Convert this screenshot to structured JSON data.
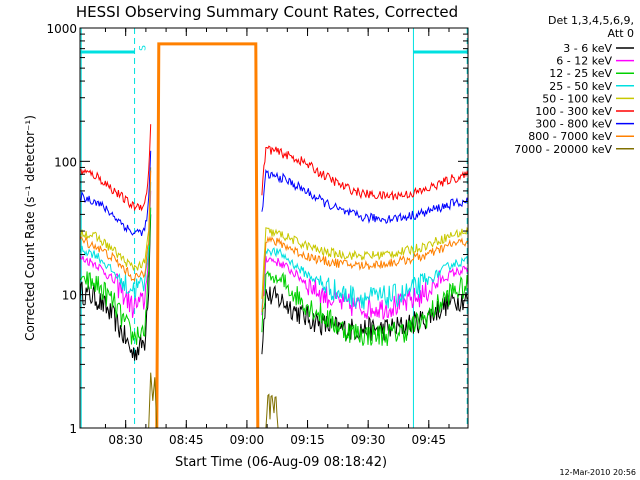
{
  "chart_data": {
    "type": "line",
    "title": "HESSI Observing Summary Count Rates, Corrected",
    "xlabel": "Start Time (06-Aug-09 08:18:42)",
    "ylabel": "Corrected Count Rate (s⁻¹ detector⁻¹)",
    "y_scale": "log",
    "ylim": [
      1,
      1000
    ],
    "xlim_minutes_after_start": [
      0,
      96
    ],
    "yticks": [
      {
        "value": 1,
        "label": "1"
      },
      {
        "value": 10,
        "label": "10"
      },
      {
        "value": 100,
        "label": "100"
      },
      {
        "value": 1000,
        "label": "1000"
      }
    ],
    "xticks": [
      {
        "minute": 11.3,
        "label": "08:30"
      },
      {
        "minute": 26.3,
        "label": "08:45"
      },
      {
        "minute": 41.3,
        "label": "09:00"
      },
      {
        "minute": 56.3,
        "label": "09:15"
      },
      {
        "minute": 71.3,
        "label": "09:30"
      },
      {
        "minute": 86.3,
        "label": "09:45"
      }
    ],
    "legend": {
      "placement": "right",
      "header_line1": "Det 1,3,4,5,6,9,",
      "header_line2": "Att 0"
    },
    "series": [
      {
        "name": "3 - 6 keV",
        "color": "#000000",
        "segments": [
          {
            "x": [
              0,
              4,
              8,
              11,
              13,
              16,
              17,
              17.5
            ],
            "y": [
              10.5,
              9.5,
              7,
              4.8,
              3.6,
              4.5,
              12,
              40
            ]
          },
          {
            "x": [
              45,
              46,
              50,
              55,
              60,
              65,
              70,
              75,
              80,
              85,
              88,
              92,
              96
            ],
            "y": [
              4,
              10,
              9,
              7,
              6,
              5.5,
              5.5,
              5.5,
              5.8,
              6.5,
              7.5,
              9,
              9.5
            ]
          }
        ]
      },
      {
        "name": "6 - 12 keV",
        "color": "#ff00ff",
        "segments": [
          {
            "x": [
              0,
              4,
              8,
              11,
              13,
              16,
              17,
              17.5
            ],
            "y": [
              19,
              17,
              13,
              10,
              8,
              9,
              20,
              60
            ]
          },
          {
            "x": [
              45,
              46,
              50,
              55,
              60,
              65,
              70,
              75,
              80,
              85,
              88,
              92,
              96
            ],
            "y": [
              6,
              19,
              17,
              13,
              10,
              8.5,
              8,
              8,
              8.5,
              10,
              12,
              14.5,
              15.5
            ]
          }
        ]
      },
      {
        "name": "12 - 25 keV",
        "color": "#00d000",
        "segments": [
          {
            "x": [
              0,
              4,
              8,
              11,
              13,
              16,
              17,
              17.5
            ],
            "y": [
              13,
              12,
              9,
              6.2,
              4.8,
              5.5,
              14,
              45
            ]
          },
          {
            "x": [
              45,
              46,
              50,
              55,
              60,
              65,
              70,
              75,
              80,
              85,
              88,
              92,
              96
            ],
            "y": [
              5,
              14,
              12.5,
              9,
              7,
              5.5,
              5,
              5,
              5.3,
              6.5,
              8,
              10.5,
              11.5
            ]
          }
        ]
      },
      {
        "name": "25 - 50 keV",
        "color": "#00e0e0",
        "segments": [
          {
            "x": [
              0,
              4,
              8,
              11,
              13,
              16,
              17,
              17.5
            ],
            "y": [
              22,
              20,
              15,
              12,
              11,
              12,
              24,
              70
            ]
          },
          {
            "x": [
              45,
              46,
              50,
              55,
              60,
              65,
              70,
              75,
              80,
              85,
              88,
              92,
              96
            ],
            "y": [
              7,
              22,
              20,
              15,
              12,
              10,
              9.5,
              9.5,
              10,
              12,
              14,
              17,
              18
            ]
          }
        ]
      },
      {
        "name": "50 - 100 keV",
        "color": "#c8c800",
        "segments": [
          {
            "x": [
              0,
              4,
              8,
              11,
              13,
              16,
              17,
              17.5
            ],
            "y": [
              30,
              27,
              22,
              18,
              16,
              17,
              30,
              90
            ]
          },
          {
            "x": [
              45,
              46,
              50,
              55,
              60,
              65,
              70,
              75,
              80,
              85,
              88,
              92,
              96
            ],
            "y": [
              10,
              30,
              28,
              24,
              21,
              20,
              19.5,
              20,
              21,
              23,
              25,
              28,
              30
            ]
          }
        ]
      },
      {
        "name": "100 - 300 keV",
        "color": "#ff0000",
        "segments": [
          {
            "x": [
              0,
              4,
              8,
              11,
              13,
              16,
              17,
              17.5
            ],
            "y": [
              85,
              78,
              62,
              52,
              46,
              47,
              80,
              190
            ]
          },
          {
            "x": [
              45,
              46,
              50,
              55,
              60,
              65,
              70,
              75,
              80,
              85,
              88,
              92,
              96
            ],
            "y": [
              60,
              125,
              115,
              100,
              80,
              65,
              57,
              55,
              56,
              60,
              66,
              74,
              78
            ]
          }
        ]
      },
      {
        "name": "300 - 800 keV",
        "color": "#0000ff",
        "segments": [
          {
            "x": [
              0,
              4,
              8,
              11,
              13,
              16,
              17,
              17.5
            ],
            "y": [
              55,
              50,
              40,
              33,
              29,
              30,
              50,
              120
            ]
          },
          {
            "x": [
              45,
              46,
              50,
              55,
              60,
              65,
              70,
              75,
              80,
              85,
              88,
              92,
              96
            ],
            "y": [
              40,
              80,
              75,
              62,
              50,
              42,
              38,
              37,
              38,
              41,
              44,
              48,
              50
            ]
          }
        ]
      },
      {
        "name": "800 - 7000 keV",
        "color": "#ff8000",
        "segments": [
          {
            "x": [
              0,
              4,
              8,
              11,
              13,
              16,
              17,
              17.5
            ],
            "y": [
              26,
              23,
              19,
              15.5,
              13.5,
              14,
              26,
              85
            ]
          },
          {
            "x": [
              19,
              19.5,
              43.5,
              44
            ],
            "y": [
              1,
              760,
              760,
              1
            ]
          },
          {
            "x": [
              45,
              46,
              50,
              55,
              60,
              65,
              70,
              75,
              80,
              85,
              88,
              92,
              96
            ],
            "y": [
              8,
              26,
              24,
              20,
              18,
              17,
              16.5,
              17,
              18,
              19.5,
              21,
              24,
              25
            ]
          }
        ]
      },
      {
        "name": "7000 - 20000 keV",
        "color": "#807000",
        "segments": [
          {
            "x": [
              17,
              17.5,
              18,
              18.5,
              19
            ],
            "y": [
              1,
              2.6,
              1.6,
              2.4,
              1
            ]
          },
          {
            "x": [
              46,
              46.5,
              47,
              47.5,
              48,
              48.5,
              49
            ],
            "y": [
              1,
              1.8,
              1.2,
              1.8,
              1.2,
              1.8,
              1
            ]
          }
        ]
      }
    ],
    "markers": {
      "color": "#00e0e0",
      "saa_bars": [
        {
          "from": 0,
          "to": 13.5,
          "y": 660
        },
        {
          "from": 82.5,
          "to": 96,
          "y": 660
        }
      ],
      "dashed_lines": [
        13.5,
        95.8
      ],
      "solid_lines": [
        82.5
      ],
      "saa_label": "S",
      "saa_label_minute": 16.2
    },
    "footer_timestamp": "12-Mar-2010 20:56"
  }
}
